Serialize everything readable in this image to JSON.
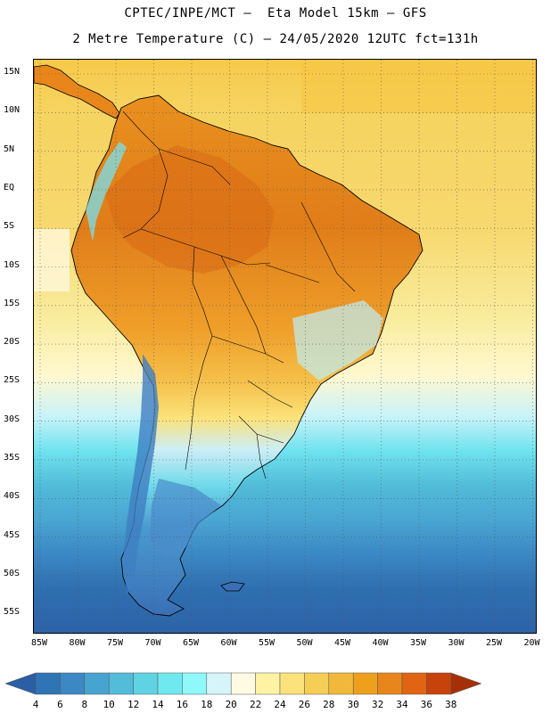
{
  "title": {
    "line1": "CPTEC/INPE/MCT –  Eta Model 15km – GFS",
    "line2": "2 Metre Temperature (C) – 24/05/2020 12UTC fct=131h"
  },
  "map": {
    "lat_labels": [
      "15N",
      "10N",
      "5N",
      "EQ",
      "5S",
      "10S",
      "15S",
      "20S",
      "25S",
      "30S",
      "35S",
      "40S",
      "45S",
      "50S",
      "55S"
    ],
    "lon_labels": [
      "85W",
      "80W",
      "75W",
      "70W",
      "65W",
      "60W",
      "55W",
      "50W",
      "45W",
      "40W",
      "35W",
      "30W",
      "25W",
      "20W"
    ],
    "gridline_style": "dotted"
  },
  "colorbar": {
    "labels": [
      "4",
      "6",
      "8",
      "10",
      "12",
      "14",
      "16",
      "18",
      "20",
      "22",
      "24",
      "26",
      "28",
      "30",
      "32",
      "34",
      "36",
      "38"
    ],
    "colors": [
      "#2a5fa6",
      "#2f74b5",
      "#3b88c4",
      "#47a3cf",
      "#52bcd9",
      "#5fd3e3",
      "#6fe9ef",
      "#8ef8fb",
      "#d6f5fb",
      "#fffbe3",
      "#fff3a3",
      "#fbe27a",
      "#f5cf55",
      "#f1b93b",
      "#ee9f1c",
      "#e8861c",
      "#df6514",
      "#c8420b",
      "#a53007"
    ]
  },
  "colors": {
    "ocean_warm": "#f7d35e",
    "ocean_mid": "#f5e9a6",
    "ocean_cool": "#7ee6f0",
    "ocean_cold": "#3d8bc8",
    "ocean_coldest": "#2f65aa",
    "land_hot": "#e3861d",
    "land_warm": "#f0aa35",
    "land_cold": "#4380c4",
    "border": "#000000"
  }
}
